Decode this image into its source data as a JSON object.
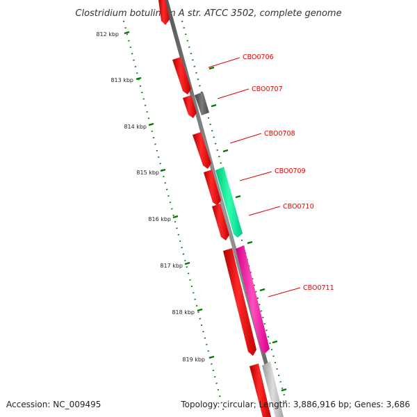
{
  "title": "Clostridium botulinum A str. ATCC 3502, complete genome",
  "footer": {
    "accession": "Accession: NC_009495",
    "summary": "Topology: circular; Length: 3,886,916 bp; Genes: 3,686"
  },
  "ticks": [
    {
      "label": "812 kbp"
    },
    {
      "label": "813 kbp"
    },
    {
      "label": "814 kbp"
    },
    {
      "label": "815 kbp"
    },
    {
      "label": "816 kbp"
    },
    {
      "label": "817 kbp"
    },
    {
      "label": "818 kbp"
    },
    {
      "label": "819 kbp"
    }
  ],
  "genes": [
    {
      "id": "CBO0706",
      "label": "CBO0706"
    },
    {
      "id": "CBO0707",
      "label": "CBO0707"
    },
    {
      "id": "CBO0708",
      "label": "CBO0708"
    },
    {
      "id": "CBO0709",
      "label": "CBO0709"
    },
    {
      "id": "CBO0710",
      "label": "CBO0710"
    },
    {
      "id": "CBO0711",
      "label": "CBO0711"
    }
  ],
  "colors": {
    "backbone": "#777777",
    "tick": "#007700",
    "gene_red": "#ff0000",
    "gene_grey": "#666666",
    "gene_green": "#00ee99",
    "gene_magenta": "#ff1aa0",
    "gene_lightgrey": "#bbbbbb",
    "label": "#e00000"
  }
}
